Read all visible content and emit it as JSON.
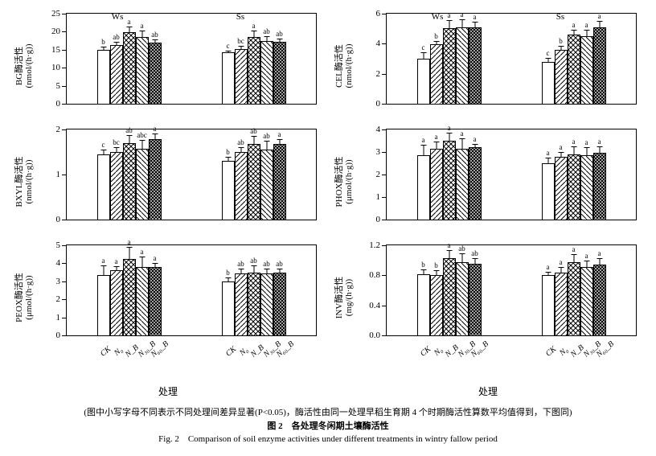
{
  "patterns": [
    "p0",
    "p1",
    "p2",
    "p3",
    "p4"
  ],
  "treatments": [
    "CK",
    "N₀",
    "N_B",
    "N₃₀_B",
    "N₆₀_B"
  ],
  "sections": [
    "Ws",
    "Ss"
  ],
  "xaxis_label": "处理",
  "caption_cn1": "(图中小写字母不同表示不同处理间差异显著(P<0.05)，酶活性由同一处理早稻生育期 4 个时期酶活性算数平均值得到，下图同)",
  "caption_cn2": "图 2　各处理冬闲期土壤酶活性",
  "caption_en": "Fig. 2　Comparison of soil enzyme activities under different treatments in wintry fallow period",
  "panels": [
    {
      "ylab": "BG酶活性\n(nmol/(h·g))",
      "ymax": 25,
      "ystep": 5,
      "showX": false,
      "groups": [
        {
          "bars": [
            {
              "v": 15,
              "e": 1.2,
              "s": "b"
            },
            {
              "v": 16.2,
              "e": 1.2,
              "s": "ab"
            },
            {
              "v": 19.8,
              "e": 1.8,
              "s": "a"
            },
            {
              "v": 18.5,
              "e": 2,
              "s": "a"
            },
            {
              "v": 17,
              "e": 1,
              "s": "ab"
            }
          ]
        },
        {
          "bars": [
            {
              "v": 14.2,
              "e": 0.8,
              "s": "c"
            },
            {
              "v": 15.2,
              "e": 1.2,
              "s": "bc"
            },
            {
              "v": 18.5,
              "e": 2,
              "s": "a"
            },
            {
              "v": 17.5,
              "e": 1.5,
              "s": "ab"
            },
            {
              "v": 17.3,
              "e": 1,
              "s": "ab"
            }
          ]
        }
      ]
    },
    {
      "ylab": "CEL酶活性\n(nmol/(h·g))",
      "ymax": 6,
      "ystep": 2,
      "showX": false,
      "groups": [
        {
          "bars": [
            {
              "v": 3.0,
              "e": 0.5,
              "s": "c"
            },
            {
              "v": 3.95,
              "e": 0.3,
              "s": "b"
            },
            {
              "v": 5.05,
              "e": 0.6,
              "s": "a"
            },
            {
              "v": 5.1,
              "e": 0.6,
              "s": "a"
            },
            {
              "v": 5.1,
              "e": 0.4,
              "s": "a"
            }
          ]
        },
        {
          "bars": [
            {
              "v": 2.8,
              "e": 0.3,
              "s": "c"
            },
            {
              "v": 3.6,
              "e": 0.3,
              "s": "b"
            },
            {
              "v": 4.6,
              "e": 0.4,
              "s": "a"
            },
            {
              "v": 4.5,
              "e": 0.5,
              "s": "a"
            },
            {
              "v": 5.1,
              "e": 0.5,
              "s": "a"
            }
          ]
        }
      ]
    },
    {
      "ylab": "BXYL酶活性\n(nmol/(h·g))",
      "ymax": 2,
      "ystep": 1,
      "showX": false,
      "groups": [
        {
          "bars": [
            {
              "v": 1.45,
              "e": 0.12,
              "s": "c"
            },
            {
              "v": 1.5,
              "e": 0.12,
              "s": "bc"
            },
            {
              "v": 1.7,
              "e": 0.2,
              "s": "ab"
            },
            {
              "v": 1.58,
              "e": 0.2,
              "s": "abc"
            },
            {
              "v": 1.78,
              "e": 0.15,
              "s": "a"
            }
          ]
        },
        {
          "bars": [
            {
              "v": 1.3,
              "e": 0.12,
              "s": "b"
            },
            {
              "v": 1.5,
              "e": 0.12,
              "s": "ab"
            },
            {
              "v": 1.68,
              "e": 0.2,
              "s": "ab"
            },
            {
              "v": 1.55,
              "e": 0.22,
              "s": "ab"
            },
            {
              "v": 1.68,
              "e": 0.12,
              "s": "a"
            }
          ]
        }
      ]
    },
    {
      "ylab": "PHOX酶活性\n(μmol/(h·g))",
      "ymax": 4,
      "ystep": 1,
      "showX": false,
      "groups": [
        {
          "bars": [
            {
              "v": 2.85,
              "e": 0.5,
              "s": "a"
            },
            {
              "v": 3.15,
              "e": 0.35,
              "s": "a"
            },
            {
              "v": 3.5,
              "e": 0.4,
              "s": "a"
            },
            {
              "v": 3.15,
              "e": 0.5,
              "s": "a"
            },
            {
              "v": 3.22,
              "e": 0.18,
              "s": "a"
            }
          ]
        },
        {
          "bars": [
            {
              "v": 2.5,
              "e": 0.3,
              "s": "a"
            },
            {
              "v": 2.8,
              "e": 0.25,
              "s": "a"
            },
            {
              "v": 2.9,
              "e": 0.4,
              "s": "a"
            },
            {
              "v": 2.85,
              "e": 0.4,
              "s": "a"
            },
            {
              "v": 2.95,
              "e": 0.35,
              "s": "a"
            }
          ]
        }
      ]
    },
    {
      "ylab": "PEOX酶活性\n(μmol/(h·g))",
      "ymax": 5,
      "ystep": 1,
      "showX": true,
      "groups": [
        {
          "bars": [
            {
              "v": 3.35,
              "e": 0.6,
              "s": "a"
            },
            {
              "v": 3.6,
              "e": 0.3,
              "s": "a"
            },
            {
              "v": 4.25,
              "e": 0.7,
              "s": "a"
            },
            {
              "v": 3.8,
              "e": 0.65,
              "s": "a"
            },
            {
              "v": 3.78,
              "e": 0.3,
              "s": "a"
            }
          ]
        },
        {
          "bars": [
            {
              "v": 3.0,
              "e": 0.25,
              "s": "b"
            },
            {
              "v": 3.45,
              "e": 0.3,
              "s": "ab"
            },
            {
              "v": 3.5,
              "e": 0.45,
              "s": "ab"
            },
            {
              "v": 3.45,
              "e": 0.3,
              "s": "ab"
            },
            {
              "v": 3.5,
              "e": 0.25,
              "s": "ab"
            }
          ]
        }
      ]
    },
    {
      "ylab": "INV酶活性\n(mg/(h·g))",
      "ymax": 1.2,
      "ystep": 0.4,
      "showX": true,
      "groups": [
        {
          "bars": [
            {
              "v": 0.81,
              "e": 0.08,
              "s": "b"
            },
            {
              "v": 0.8,
              "e": 0.08,
              "s": "b"
            },
            {
              "v": 1.03,
              "e": 0.12,
              "s": "a"
            },
            {
              "v": 0.97,
              "e": 0.13,
              "s": "ab"
            },
            {
              "v": 0.95,
              "e": 0.09,
              "s": "ab"
            }
          ]
        },
        {
          "bars": [
            {
              "v": 0.8,
              "e": 0.06,
              "s": "a"
            },
            {
              "v": 0.84,
              "e": 0.08,
              "s": "a"
            },
            {
              "v": 0.97,
              "e": 0.12,
              "s": "a"
            },
            {
              "v": 0.91,
              "e": 0.1,
              "s": "a"
            },
            {
              "v": 0.94,
              "e": 0.1,
              "s": "a"
            }
          ]
        }
      ]
    }
  ]
}
